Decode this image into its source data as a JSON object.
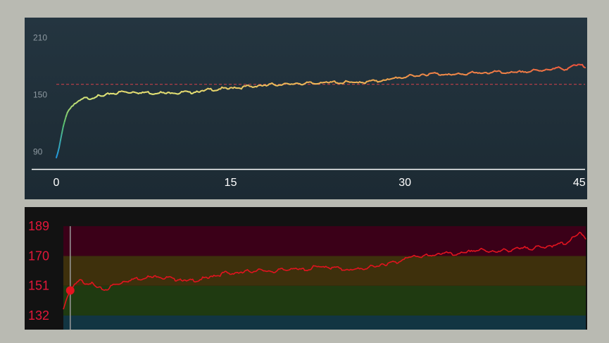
{
  "colors": {
    "background": "#b9bab2",
    "top_panel_bg": "#22323d",
    "bottom_panel_bg": "#121212",
    "threshold_line": "#d9434d",
    "bottom_line": "#e3131f",
    "bottom_tick_color": "#e3173a",
    "zone_colors": [
      "#123542",
      "#1f3a11",
      "#3e300c",
      "#3b0018"
    ]
  },
  "chart_data": [
    {
      "type": "line",
      "title": "",
      "xlabel": "",
      "ylabel": "",
      "xlim": [
        0,
        45.5
      ],
      "ylim": [
        75,
        220
      ],
      "x_ticks": [
        0,
        15,
        30,
        45
      ],
      "x_tick_labels": [
        "0",
        "15",
        "30",
        "45"
      ],
      "y_ticks": [
        90,
        150,
        210
      ],
      "y_tick_labels": [
        "90",
        "150",
        "210"
      ],
      "reference_line": 161,
      "color_scale": "value-gradient blue-green-yellow-orange-red",
      "grid": false,
      "legend": "none",
      "series": [
        {
          "x": [
            0,
            0.2,
            0.4,
            0.6,
            0.8,
            1.0,
            1.3,
            1.6,
            2.0,
            2.5,
            3.0,
            3.5,
            4.0,
            5.0,
            6.0,
            8.0,
            10.0,
            12.0,
            13.0,
            14.0,
            15.0,
            16.0,
            17.0,
            18.0,
            19.0,
            20.0,
            21.0,
            22.0,
            23.0,
            24.0,
            25.0,
            26.0,
            27.0,
            28.0,
            29.0,
            30.0,
            31.0,
            32.0,
            33.0,
            34.0,
            35.0,
            36.0,
            37.0,
            38.0,
            39.0,
            40.0,
            41.0,
            42.0,
            43.0,
            43.5,
            44.0,
            44.5,
            45.0,
            45.3,
            45.5
          ],
          "y": [
            84,
            92,
            105,
            117,
            126,
            133,
            137,
            141,
            144,
            146,
            147,
            148,
            149,
            152,
            153,
            152,
            152,
            153,
            155,
            156,
            157,
            158,
            159,
            160,
            161,
            161,
            162,
            162,
            163,
            163,
            163,
            163,
            164,
            165,
            167,
            169,
            170,
            172,
            172,
            171,
            172,
            173,
            173,
            174,
            173,
            174,
            175,
            176,
            178,
            177,
            178,
            180,
            182,
            180,
            178
          ]
        }
      ]
    },
    {
      "type": "line",
      "title": "",
      "xlabel": "",
      "ylabel": "",
      "xlim": [
        0,
        45.5
      ],
      "ylim": [
        123,
        194
      ],
      "y_ticks": [
        132,
        151,
        170,
        189
      ],
      "y_tick_labels": [
        "132",
        "151",
        "170",
        "189"
      ],
      "zones": [
        {
          "from": 123,
          "to": 132
        },
        {
          "from": 132,
          "to": 151
        },
        {
          "from": 151,
          "to": 170
        },
        {
          "from": 170,
          "to": 189
        }
      ],
      "marker": {
        "x": 0.6,
        "y": 148
      },
      "grid": false,
      "legend": "none",
      "series": [
        {
          "x": [
            0,
            0.3,
            0.6,
            1.0,
            1.5,
            2.0,
            2.5,
            3.0,
            3.5,
            4.0,
            5.0,
            6.0,
            7.0,
            8.0,
            9.0,
            10.0,
            11.0,
            12.0,
            13.0,
            14.0,
            15.0,
            16.0,
            17.0,
            18.0,
            19.0,
            20.0,
            21.0,
            22.0,
            23.0,
            24.0,
            25.0,
            26.0,
            27.0,
            28.0,
            29.0,
            30.0,
            31.0,
            32.0,
            33.0,
            34.0,
            35.0,
            36.0,
            37.0,
            38.0,
            39.0,
            40.0,
            41.0,
            42.0,
            43.0,
            43.5,
            44.0,
            44.5,
            45.0,
            45.3,
            45.5
          ],
          "y": [
            136,
            143,
            148,
            152,
            154,
            153,
            152,
            150,
            148,
            150,
            153,
            155,
            156,
            157,
            156,
            155,
            154,
            155,
            157,
            159,
            159,
            160,
            161,
            160,
            161,
            162,
            161,
            163,
            163,
            162,
            161,
            162,
            163,
            165,
            166,
            169,
            170,
            170,
            172,
            171,
            172,
            174,
            173,
            173,
            174,
            175,
            175,
            176,
            177,
            178,
            179,
            182,
            185,
            183,
            181
          ]
        }
      ]
    }
  ]
}
